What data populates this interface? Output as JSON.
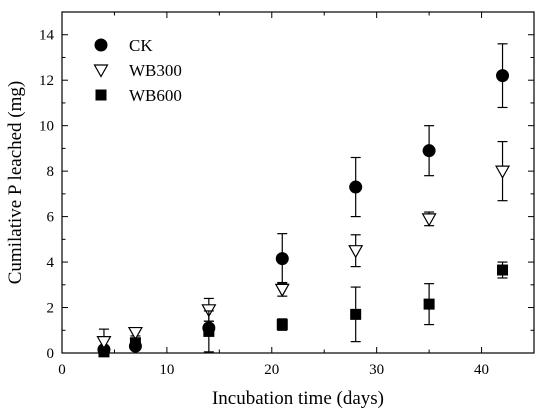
{
  "chart_data": {
    "type": "scatter",
    "xlabel": "Incubation time (days)",
    "ylabel": "Cumilative P leached (mg)",
    "xlim": [
      0,
      45
    ],
    "ylim": [
      0,
      15
    ],
    "xticks": [
      0,
      10,
      20,
      30,
      40
    ],
    "yticks": [
      0,
      2,
      4,
      6,
      8,
      10,
      12,
      14
    ],
    "grid": false,
    "legend_position": "top-left",
    "series": [
      {
        "name": "CK",
        "marker": "filled-circle",
        "color": "#000000",
        "points": [
          {
            "x": 4,
            "y": 0.15,
            "err": 0.1
          },
          {
            "x": 7,
            "y": 0.3,
            "err": 0.15
          },
          {
            "x": 14,
            "y": 1.1,
            "err": 0.3
          },
          {
            "x": 21,
            "y": 4.15,
            "err": 1.1
          },
          {
            "x": 28,
            "y": 7.3,
            "err": 1.3
          },
          {
            "x": 35,
            "y": 8.9,
            "err": 1.1
          },
          {
            "x": 42,
            "y": 12.2,
            "err": 1.4
          }
        ]
      },
      {
        "name": "WB300",
        "marker": "open-triangle-down",
        "color": "#000000",
        "points": [
          {
            "x": 4,
            "y": 0.5,
            "err": 0.55
          },
          {
            "x": 7,
            "y": 0.9,
            "err": 0.15
          },
          {
            "x": 14,
            "y": 1.9,
            "err": 0.5
          },
          {
            "x": 21,
            "y": 2.8,
            "err": 0.3
          },
          {
            "x": 28,
            "y": 4.5,
            "err": 0.7
          },
          {
            "x": 35,
            "y": 5.9,
            "err": 0.3
          },
          {
            "x": 42,
            "y": 8.0,
            "err": 1.3
          }
        ]
      },
      {
        "name": "WB600",
        "marker": "filled-square",
        "color": "#000000",
        "points": [
          {
            "x": 4,
            "y": 0.05,
            "err": 0.05
          },
          {
            "x": 7,
            "y": 0.45,
            "err": 0.1
          },
          {
            "x": 14,
            "y": 0.95,
            "err": 0.9
          },
          {
            "x": 21,
            "y": 1.25,
            "err": 0.25
          },
          {
            "x": 28,
            "y": 1.7,
            "err": 1.2
          },
          {
            "x": 35,
            "y": 2.15,
            "err": 0.9
          },
          {
            "x": 42,
            "y": 3.65,
            "err": 0.35
          }
        ]
      }
    ]
  }
}
